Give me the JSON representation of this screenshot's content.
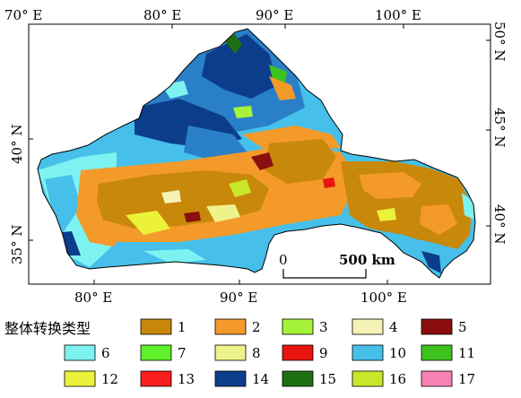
{
  "map": {
    "top_lon_labels": [
      "70° E",
      "80° E",
      "90° E",
      "100° E"
    ],
    "bottom_lon_labels": [
      "80° E",
      "90° E",
      "100° E"
    ],
    "left_lat_labels": [
      "40° N",
      "35° N"
    ],
    "right_lat_labels": [
      "50° N",
      "45° N",
      "40° N"
    ],
    "scale_bar": {
      "zero_label": "0",
      "length_label": "500 km"
    }
  },
  "legend": {
    "title": "整体转换类型",
    "items": [
      {
        "label": "1",
        "color": "#c8880a"
      },
      {
        "label": "2",
        "color": "#f49a2a"
      },
      {
        "label": "3",
        "color": "#a6f23a"
      },
      {
        "label": "4",
        "color": "#f4f2b4"
      },
      {
        "label": "5",
        "color": "#8a0e0e"
      },
      {
        "label": "6",
        "color": "#7ef2f0"
      },
      {
        "label": "7",
        "color": "#5ef02a"
      },
      {
        "label": "8",
        "color": "#eef28a"
      },
      {
        "label": "9",
        "color": "#e8150f"
      },
      {
        "label": "10",
        "color": "#46c0ea"
      },
      {
        "label": "11",
        "color": "#3ec21e"
      },
      {
        "label": "12",
        "color": "#ecf23a"
      },
      {
        "label": "13",
        "color": "#fb1e1e"
      },
      {
        "label": "14",
        "color": "#0c3d8a"
      },
      {
        "label": "15",
        "color": "#1e6e12"
      },
      {
        "label": "16",
        "color": "#c6e828"
      },
      {
        "label": "17",
        "color": "#f880b4"
      }
    ]
  }
}
